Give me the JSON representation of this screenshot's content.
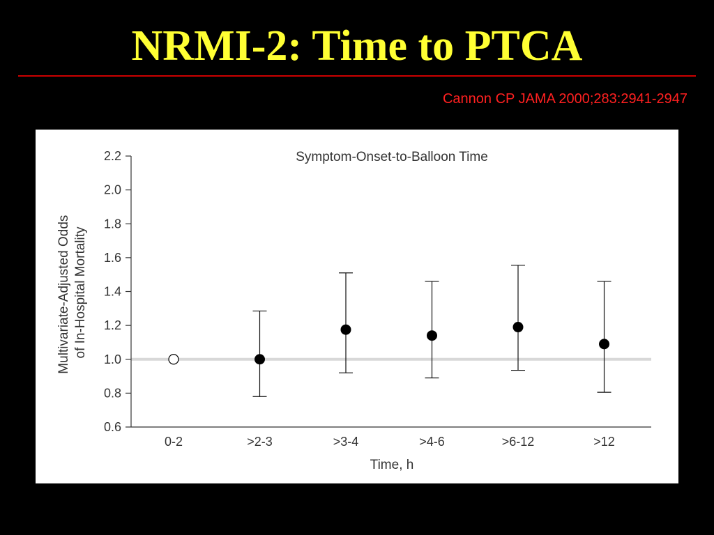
{
  "slide": {
    "title": "NRMI-2: Time to PTCA",
    "citation": "Cannon CP JAMA 2000;283:2941-2947"
  },
  "colors": {
    "background": "#000000",
    "title": "#ffff33",
    "rule": "#cc0000",
    "citation": "#ff2020",
    "panel": "#ffffff",
    "reference_line": "#d8d8d8",
    "marker": "#000000"
  },
  "chart_data": {
    "type": "scatter",
    "title": "Symptom-Onset-to-Balloon Time",
    "xlabel": "Time, h",
    "ylabel_lines": [
      "Multivariate-Adjusted Odds",
      "of In-Hospital Mortality"
    ],
    "categories": [
      "0-2",
      ">2-3",
      ">3-4",
      ">4-6",
      ">6-12",
      ">12"
    ],
    "values": [
      1.0,
      1.0,
      1.175,
      1.14,
      1.19,
      1.09
    ],
    "ci_lower": [
      null,
      0.78,
      0.92,
      0.89,
      0.935,
      0.805
    ],
    "ci_upper": [
      null,
      1.285,
      1.51,
      1.46,
      1.555,
      1.46
    ],
    "reference_marker": [
      true,
      false,
      false,
      false,
      false,
      false
    ],
    "reference_line_value": 1.0,
    "ylim": [
      0.6,
      2.2
    ],
    "yticks": [
      "0.6",
      "0.8",
      "1.0",
      "1.2",
      "1.4",
      "1.6",
      "1.8",
      "2.0",
      "2.2"
    ],
    "grid": false,
    "legend": "none"
  }
}
